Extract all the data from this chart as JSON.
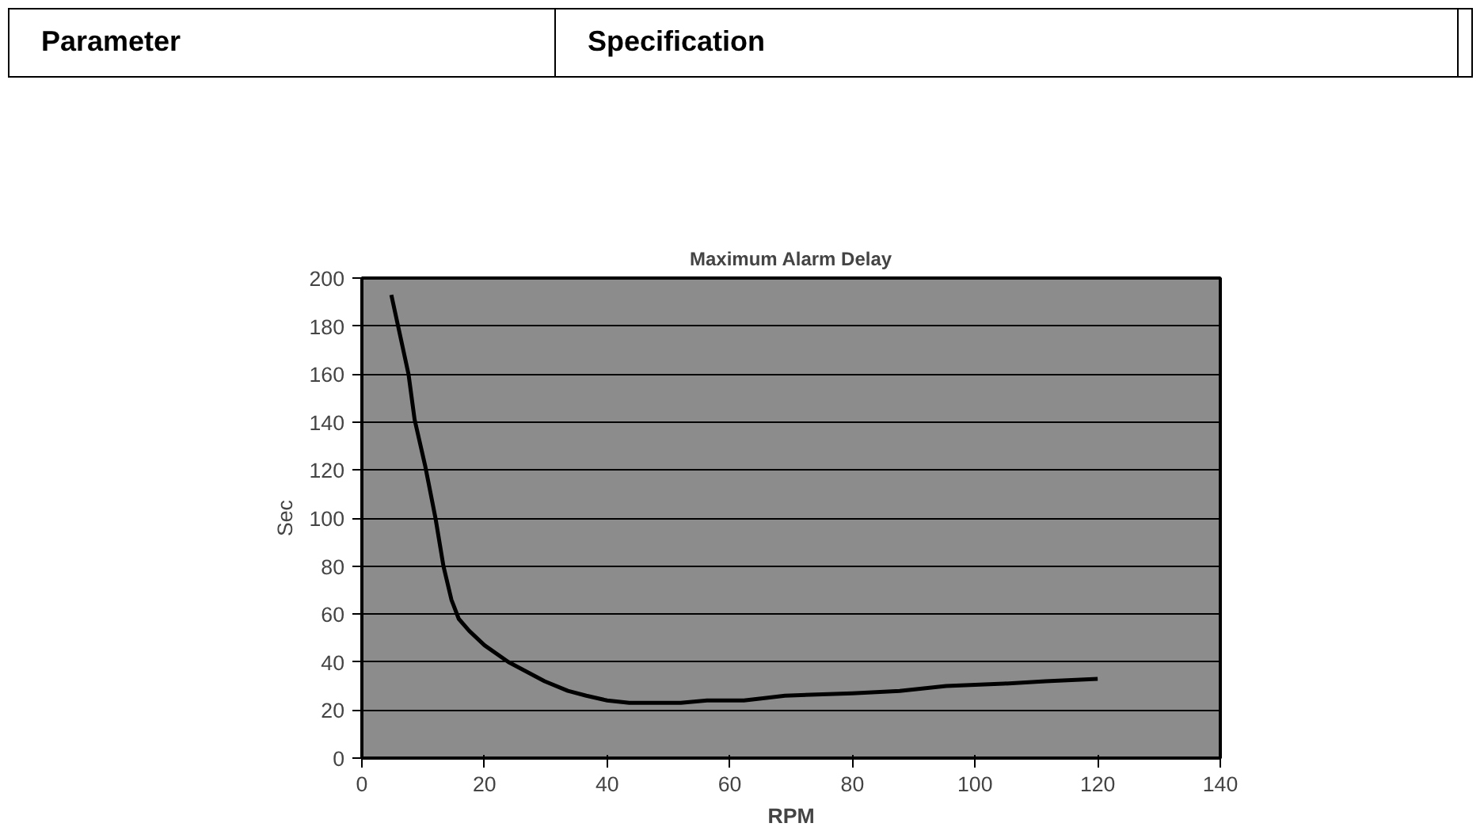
{
  "chart_data": {
    "type": "line",
    "title": "Maximum Alarm Delay",
    "xlabel": "RPM",
    "ylabel": "Sec",
    "annotations": [
      "Parameter",
      "Specification"
    ],
    "x": [
      4.8,
      7.6,
      8.6,
      10.3,
      12,
      13.3,
      14.6,
      15.8,
      17.5,
      20,
      23.9,
      29.8,
      33.6,
      36.6,
      40,
      43.6,
      52,
      56.3,
      62.3,
      65.7,
      69,
      80,
      87.7,
      95.3,
      104.7,
      111.5,
      120
    ],
    "series": [
      {
        "color": "#000000",
        "values": [
          193,
          160,
          141,
          122,
          100,
          80,
          66,
          58,
          53,
          47,
          40,
          32,
          28,
          26,
          24,
          23,
          23,
          24,
          24,
          25,
          26,
          27,
          28,
          30,
          31,
          32,
          33
        ]
      }
    ],
    "xlim": [
      0,
      140
    ],
    "xticks": [
      0,
      20,
      40,
      60,
      80,
      100,
      120,
      140
    ],
    "ylim": [
      0,
      200
    ],
    "yticks": [
      0,
      20,
      40,
      60,
      80,
      100,
      120,
      140,
      160,
      180,
      200
    ],
    "grid": "y",
    "marker": "none",
    "line_style": "solid"
  }
}
